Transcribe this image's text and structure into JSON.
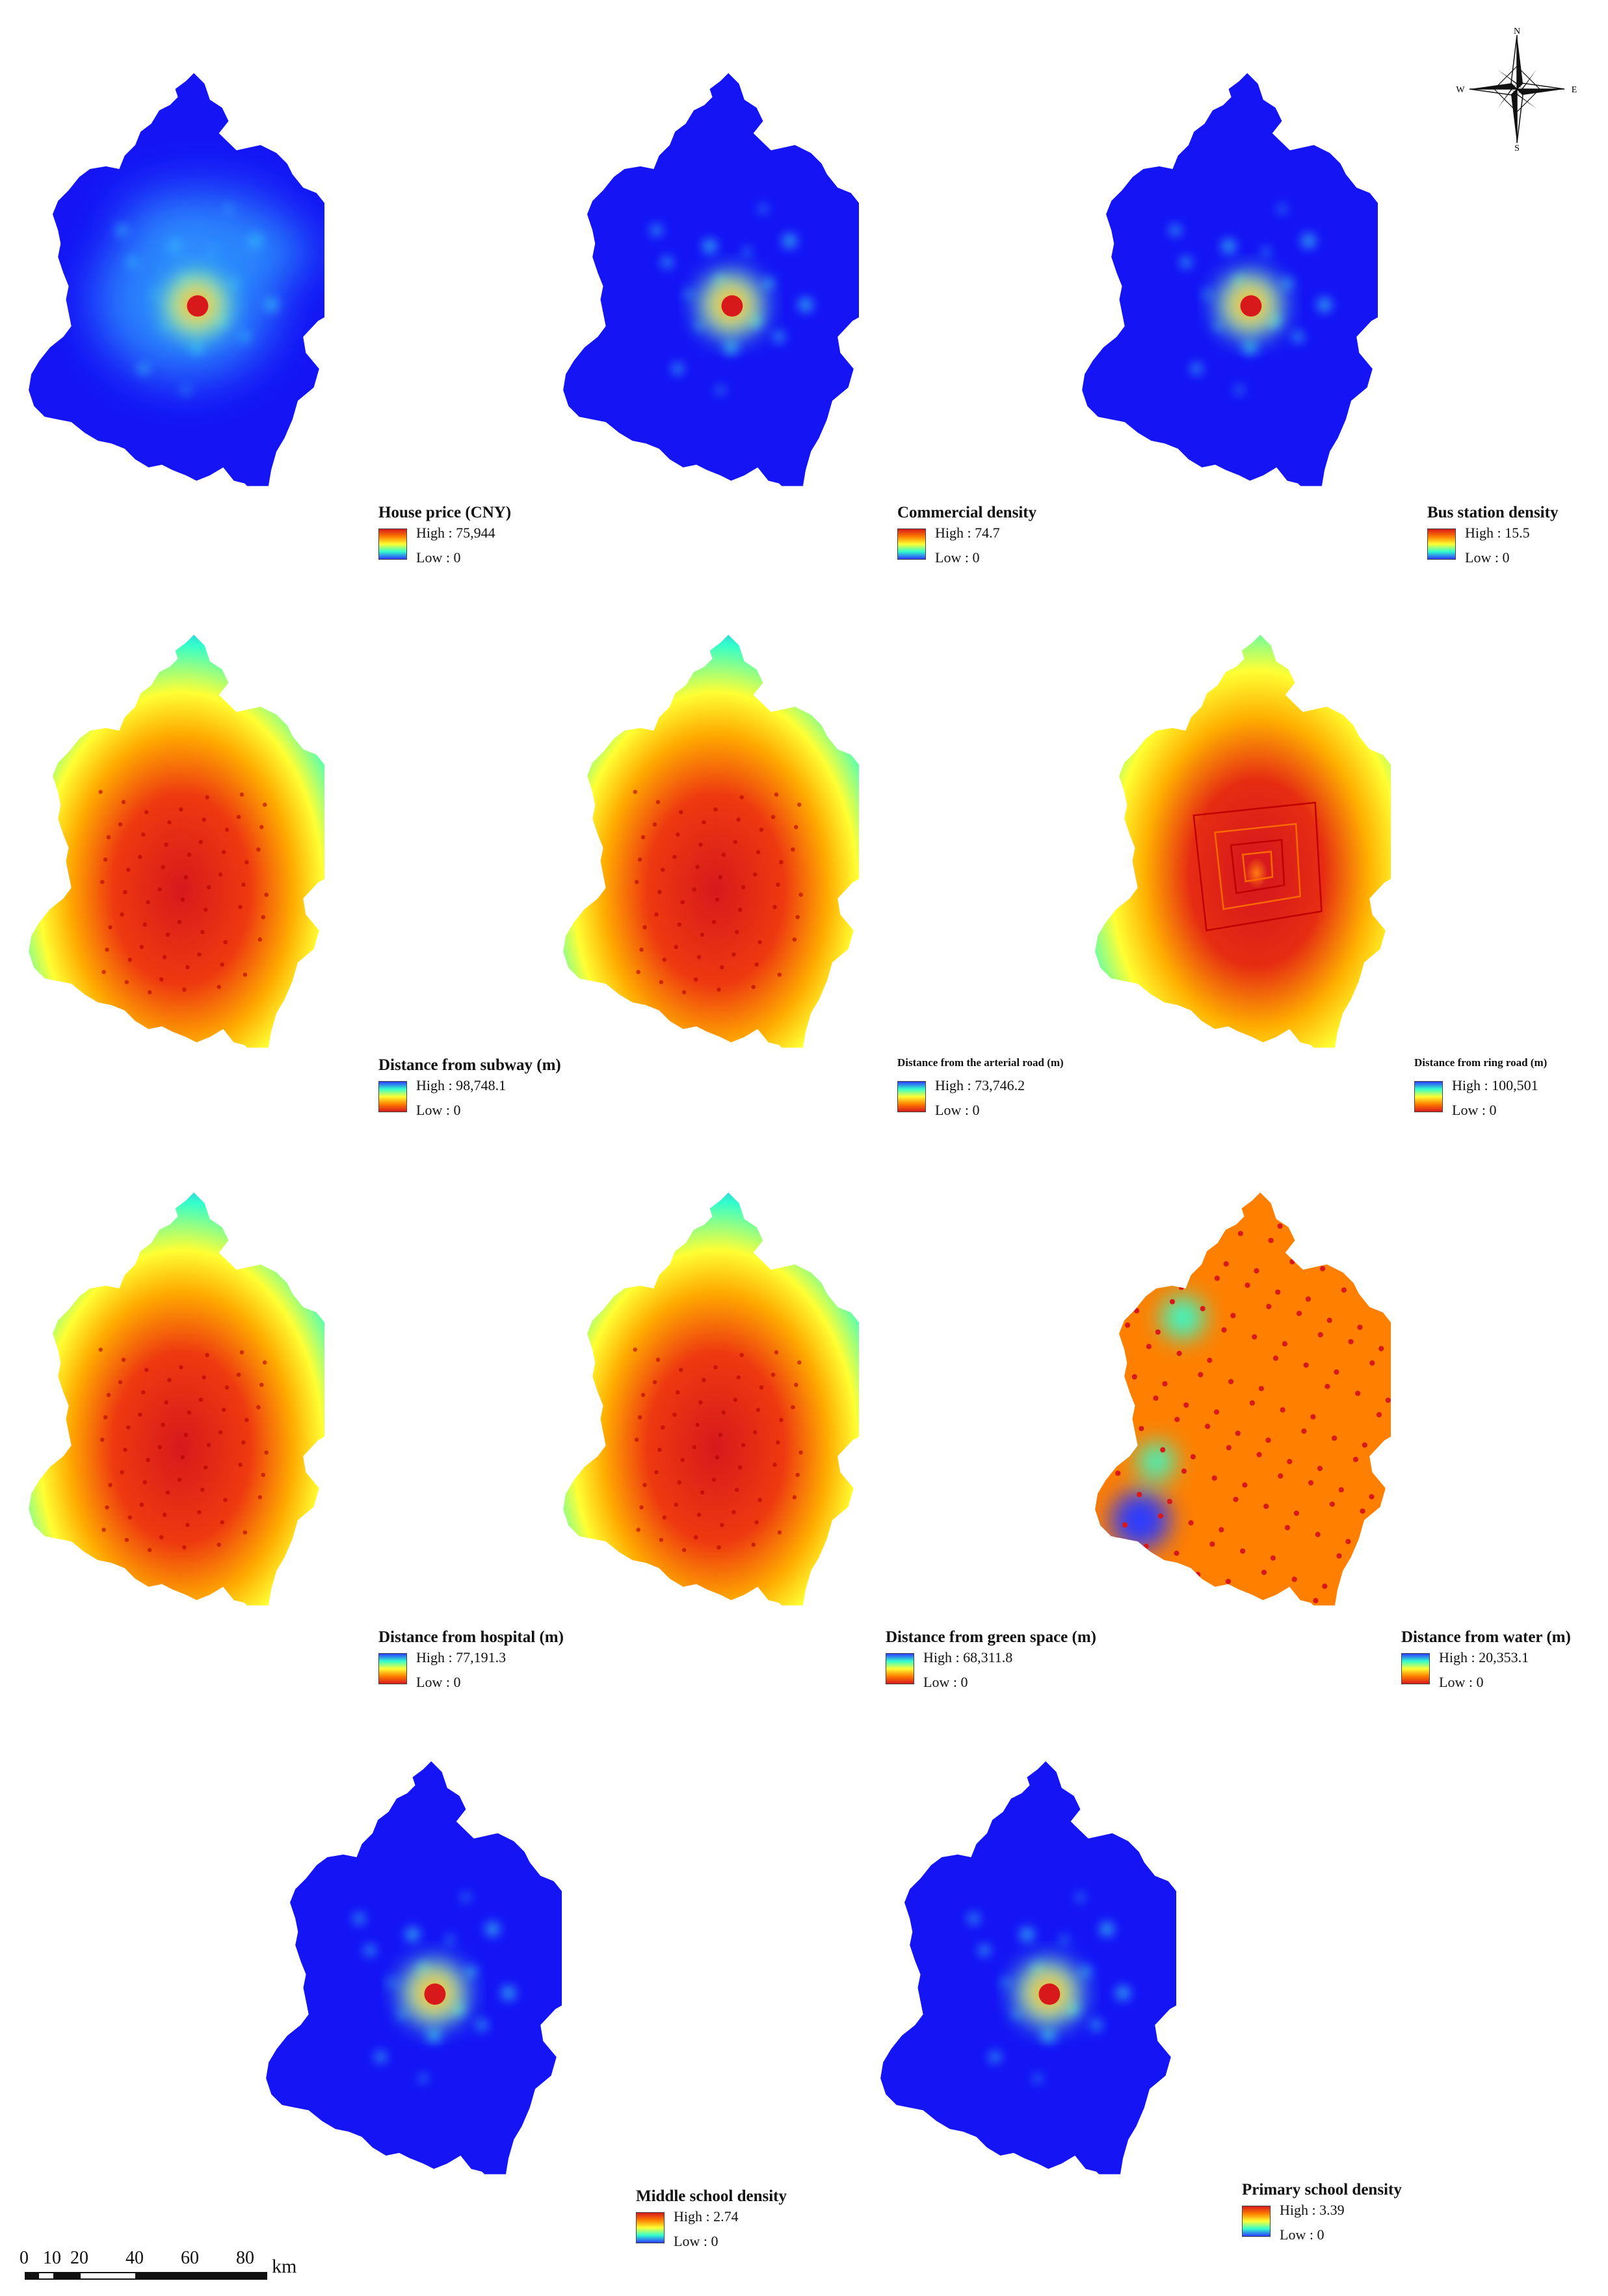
{
  "colors": {
    "deep_blue": "#1414f5",
    "blue": "#2b3bff",
    "cyan": "#33ffcc",
    "yellow": "#ffff33",
    "orange": "#ff7f00",
    "red": "#d7191c",
    "dark_red": "#b00000"
  },
  "panels": [
    {
      "title": "House price (CNY)",
      "high": "High : 75,944",
      "low": "Low : 0",
      "style": "density-price"
    },
    {
      "title": "Commercial density",
      "high": "High : 74.7",
      "low": "Low : 0",
      "style": "density"
    },
    {
      "title": "Bus station density",
      "high": "High : 15.5",
      "low": "Low : 0",
      "style": "density"
    },
    {
      "title": "Distance from subway (m)",
      "high": "High : 98,748.1",
      "low": "Low : 0",
      "style": "distance"
    },
    {
      "title": "Distance from the arterial road (m)",
      "high": "High : 73,746.2",
      "low": "Low : 0",
      "style": "distance"
    },
    {
      "title": "Distance from ring road (m)",
      "high": "High : 100,501",
      "low": "Low : 0",
      "style": "distance-ring"
    },
    {
      "title": "Distance from hospital (m)",
      "high": "High : 77,191.3",
      "low": "Low : 0",
      "style": "distance"
    },
    {
      "title": "Distance from green space (m)",
      "high": "High : 68,311.8",
      "low": "Low : 0",
      "style": "distance"
    },
    {
      "title": "Distance from water (m)",
      "high": "High : 20,353.1",
      "low": "Low : 0",
      "style": "distance-water"
    },
    {
      "title": "Middle school density",
      "high": "High : 2.74",
      "low": "Low : 0",
      "style": "density"
    },
    {
      "title": "Primary school density",
      "high": "High : 3.39",
      "low": "Low : 0",
      "style": "density"
    }
  ],
  "compass": {
    "n": "N",
    "s": "S",
    "e": "E",
    "w": "W"
  },
  "scale_bar": {
    "ticks": [
      "0",
      "10",
      "20",
      "40",
      "60",
      "80"
    ],
    "unit": "km"
  }
}
